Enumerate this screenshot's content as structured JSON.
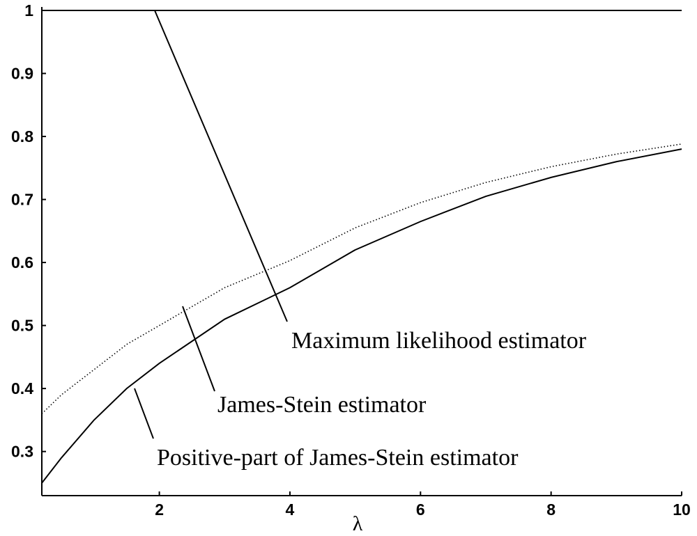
{
  "chart_data": {
    "type": "line",
    "x_label": "λ",
    "xlim": [
      0.2,
      10
    ],
    "xticks": [
      2,
      4,
      6,
      8,
      10
    ],
    "ylim": [
      0.23,
      1
    ],
    "yticks": [
      0.3,
      0.4,
      0.5,
      0.6,
      0.7,
      0.8,
      0.9,
      1
    ],
    "series": [
      {
        "name": "Maximum likelihood estimator",
        "color": "#000000",
        "dash": "solid",
        "x": [
          0.2,
          10
        ],
        "values": [
          1,
          1
        ]
      },
      {
        "name": "James-Stein estimator",
        "color": "#000000",
        "dash": "dotted",
        "x": [
          0.2,
          0.5,
          1,
          1.5,
          2,
          3,
          4,
          5,
          6,
          7,
          8,
          9,
          10
        ],
        "values": [
          0.36,
          0.39,
          0.43,
          0.47,
          0.5,
          0.56,
          0.603,
          0.655,
          0.695,
          0.727,
          0.752,
          0.772,
          0.788
        ]
      },
      {
        "name": "Positive-part of James-Stein estimator",
        "color": "#000000",
        "dash": "solid",
        "x": [
          0.2,
          0.5,
          1,
          1.5,
          2,
          3,
          4,
          5,
          6,
          7,
          8,
          9,
          10
        ],
        "values": [
          0.25,
          0.29,
          0.35,
          0.4,
          0.44,
          0.51,
          0.56,
          0.62,
          0.665,
          0.705,
          0.735,
          0.76,
          0.78
        ]
      }
    ]
  }
}
